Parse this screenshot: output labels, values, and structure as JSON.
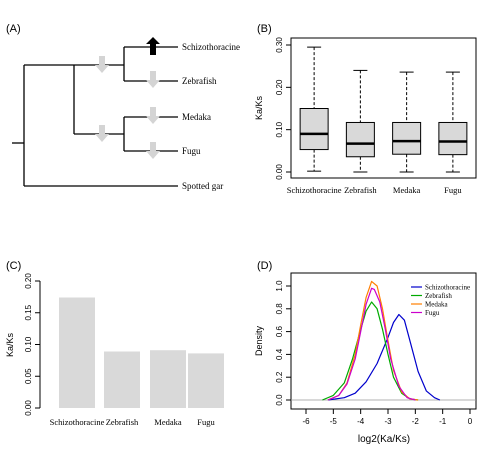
{
  "panels": {
    "a": "(A)",
    "b": "(B)",
    "c": "(C)",
    "d": "(D)"
  },
  "colors": {
    "box_fill": "#d9d9d9",
    "bar_fill": "#d9d9d9",
    "arrow_up": "#000000",
    "arrow_down": "#d4d4d4"
  },
  "tree": {
    "taxa": [
      "Schizothoracine",
      "Zebrafish",
      "Medaka",
      "Fugu",
      "Spotted gar"
    ],
    "branch_arrows": [
      {
        "branch": "Schizothoracine",
        "direction": "up"
      },
      {
        "branch": "Zebrafish",
        "direction": "down"
      },
      {
        "branch": "Schizothoracine+Zebrafish",
        "direction": "down"
      },
      {
        "branch": "Medaka",
        "direction": "down"
      },
      {
        "branch": "Fugu",
        "direction": "down"
      },
      {
        "branch": "Medaka+Fugu",
        "direction": "down"
      }
    ]
  },
  "chart_data": [
    {
      "panel": "B",
      "type": "box",
      "ylabel": "Ka/Ks",
      "categories": [
        "Schizothoracine",
        "Zebrafish",
        "Medaka",
        "Fugu"
      ],
      "ylim": [
        0,
        0.3
      ],
      "yticks": [
        "0.00",
        "0.10",
        "0.20",
        "0.30"
      ],
      "ytick_values": [
        0.0,
        0.1,
        0.2,
        0.3
      ],
      "boxes": [
        {
          "min": 0.002,
          "q1": 0.053,
          "median": 0.09,
          "q3": 0.15,
          "max": 0.295
        },
        {
          "min": 0.0,
          "q1": 0.036,
          "median": 0.067,
          "q3": 0.117,
          "max": 0.24
        },
        {
          "min": 0.0,
          "q1": 0.042,
          "median": 0.073,
          "q3": 0.117,
          "max": 0.236
        },
        {
          "min": 0.0,
          "q1": 0.041,
          "median": 0.072,
          "q3": 0.117,
          "max": 0.236
        }
      ]
    },
    {
      "panel": "C",
      "type": "bar",
      "ylabel": "Ka/Ks",
      "categories": [
        "Schizothoracine",
        "Zebrafish",
        "Medaka",
        "Fugu"
      ],
      "values": [
        0.174,
        0.089,
        0.091,
        0.086
      ],
      "ylim": [
        0,
        0.2
      ],
      "yticks": [
        "0.00",
        "0.05",
        "0.10",
        "0.15",
        "0.20"
      ],
      "ytick_values": [
        0.0,
        0.05,
        0.1,
        0.15,
        0.2
      ]
    },
    {
      "panel": "D",
      "type": "line",
      "xlabel": "log2(Ka/Ks)",
      "ylabel": "Density",
      "xlim": [
        -6,
        0
      ],
      "ylim": [
        0,
        1.0
      ],
      "xticks": [
        "-6",
        "-5",
        "-4",
        "-3",
        "-2",
        "-1",
        "0"
      ],
      "xtick_values": [
        -6,
        -5,
        -4,
        -3,
        -2,
        -1,
        0
      ],
      "yticks": [
        "0.0",
        "0.2",
        "0.4",
        "0.6",
        "0.8",
        "1.0"
      ],
      "ytick_values": [
        0.0,
        0.2,
        0.4,
        0.6,
        0.8,
        1.0
      ],
      "legend_position": "top-right",
      "series": [
        {
          "name": "Schizothoracine",
          "color": "#0000cc",
          "x": [
            -5.2,
            -4.6,
            -4.2,
            -3.8,
            -3.4,
            -3.0,
            -2.8,
            -2.6,
            -2.4,
            -2.2,
            -1.9,
            -1.6,
            -1.3,
            -1.1
          ],
          "y": [
            0.0,
            0.02,
            0.06,
            0.16,
            0.32,
            0.55,
            0.68,
            0.75,
            0.7,
            0.52,
            0.25,
            0.08,
            0.02,
            0.0
          ]
        },
        {
          "name": "Zebrafish",
          "color": "#00aa00",
          "x": [
            -5.4,
            -5.0,
            -4.6,
            -4.3,
            -4.0,
            -3.8,
            -3.6,
            -3.4,
            -3.2,
            -3.0,
            -2.8,
            -2.5,
            -2.2,
            -1.9
          ],
          "y": [
            0.0,
            0.04,
            0.15,
            0.36,
            0.62,
            0.78,
            0.86,
            0.8,
            0.62,
            0.4,
            0.2,
            0.06,
            0.01,
            0.0
          ]
        },
        {
          "name": "Medaka",
          "color": "#ff7f00",
          "x": [
            -5.2,
            -4.8,
            -4.5,
            -4.2,
            -4.0,
            -3.8,
            -3.6,
            -3.4,
            -3.2,
            -3.0,
            -2.8,
            -2.5,
            -2.2,
            -1.9
          ],
          "y": [
            0.0,
            0.04,
            0.15,
            0.4,
            0.66,
            0.9,
            1.04,
            1.0,
            0.8,
            0.52,
            0.26,
            0.07,
            0.01,
            0.0
          ]
        },
        {
          "name": "Fugu",
          "color": "#cc00cc",
          "x": [
            -5.2,
            -4.8,
            -4.5,
            -4.2,
            -4.0,
            -3.8,
            -3.6,
            -3.5,
            -3.3,
            -3.1,
            -2.9,
            -2.6,
            -2.3,
            -2.0
          ],
          "y": [
            0.0,
            0.04,
            0.14,
            0.36,
            0.6,
            0.84,
            0.98,
            0.97,
            0.86,
            0.62,
            0.36,
            0.12,
            0.02,
            0.0
          ]
        }
      ]
    }
  ]
}
